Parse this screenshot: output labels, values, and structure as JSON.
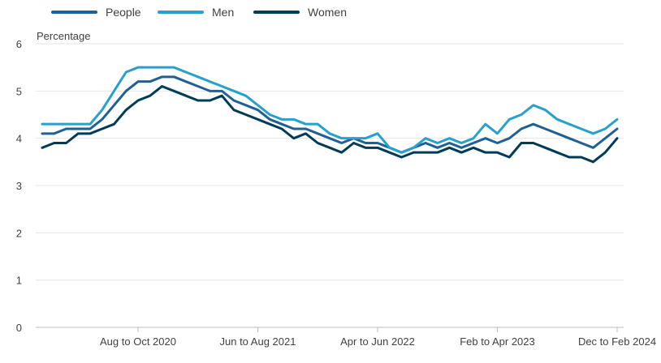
{
  "chart_data": {
    "type": "line",
    "title": "",
    "ylabel": "Percentage",
    "xlabel": "",
    "ylim": [
      0,
      6
    ],
    "yticks": [
      "0",
      "1",
      "2",
      "3",
      "4",
      "5",
      "6"
    ],
    "x_tick_labels": [
      {
        "index": 8,
        "label": "Aug to Oct 2020"
      },
      {
        "index": 18,
        "label": "Jun to Aug 2021"
      },
      {
        "index": 28,
        "label": "Apr to Jun 2022"
      },
      {
        "index": 38,
        "label": "Feb to Apr 2023"
      },
      {
        "index": 48,
        "label": "Dec to Feb 2024"
      }
    ],
    "grid": true,
    "legend_position": "top-left",
    "series": [
      {
        "name": "People",
        "color": "#206095",
        "values": [
          4.1,
          4.1,
          4.2,
          4.2,
          4.2,
          4.4,
          4.7,
          5.0,
          5.2,
          5.2,
          5.3,
          5.3,
          5.2,
          5.1,
          5.0,
          5.0,
          4.8,
          4.7,
          4.6,
          4.4,
          4.3,
          4.2,
          4.2,
          4.1,
          4.0,
          3.9,
          4.0,
          3.9,
          3.9,
          3.8,
          3.7,
          3.8,
          3.9,
          3.8,
          3.9,
          3.8,
          3.9,
          4.0,
          3.9,
          4.0,
          4.2,
          4.3,
          4.2,
          4.1,
          4.0,
          3.9,
          3.8,
          4.0,
          4.2
        ]
      },
      {
        "name": "Men",
        "color": "#27a0cc",
        "values": [
          4.3,
          4.3,
          4.3,
          4.3,
          4.3,
          4.6,
          5.0,
          5.4,
          5.5,
          5.5,
          5.5,
          5.5,
          5.4,
          5.3,
          5.2,
          5.1,
          5.0,
          4.9,
          4.7,
          4.5,
          4.4,
          4.4,
          4.3,
          4.3,
          4.1,
          4.0,
          4.0,
          4.0,
          4.1,
          3.8,
          3.7,
          3.8,
          4.0,
          3.9,
          4.0,
          3.9,
          4.0,
          4.3,
          4.1,
          4.4,
          4.5,
          4.7,
          4.6,
          4.4,
          4.3,
          4.2,
          4.1,
          4.2,
          4.4
        ]
      },
      {
        "name": "Women",
        "color": "#003c57",
        "values": [
          3.8,
          3.9,
          3.9,
          4.1,
          4.1,
          4.2,
          4.3,
          4.6,
          4.8,
          4.9,
          5.1,
          5.0,
          4.9,
          4.8,
          4.8,
          4.9,
          4.6,
          4.5,
          4.4,
          4.3,
          4.2,
          4.0,
          4.1,
          3.9,
          3.8,
          3.7,
          3.9,
          3.8,
          3.8,
          3.7,
          3.6,
          3.7,
          3.7,
          3.7,
          3.8,
          3.7,
          3.8,
          3.7,
          3.7,
          3.6,
          3.9,
          3.9,
          3.8,
          3.7,
          3.6,
          3.6,
          3.5,
          3.7,
          4.0
        ]
      }
    ]
  }
}
